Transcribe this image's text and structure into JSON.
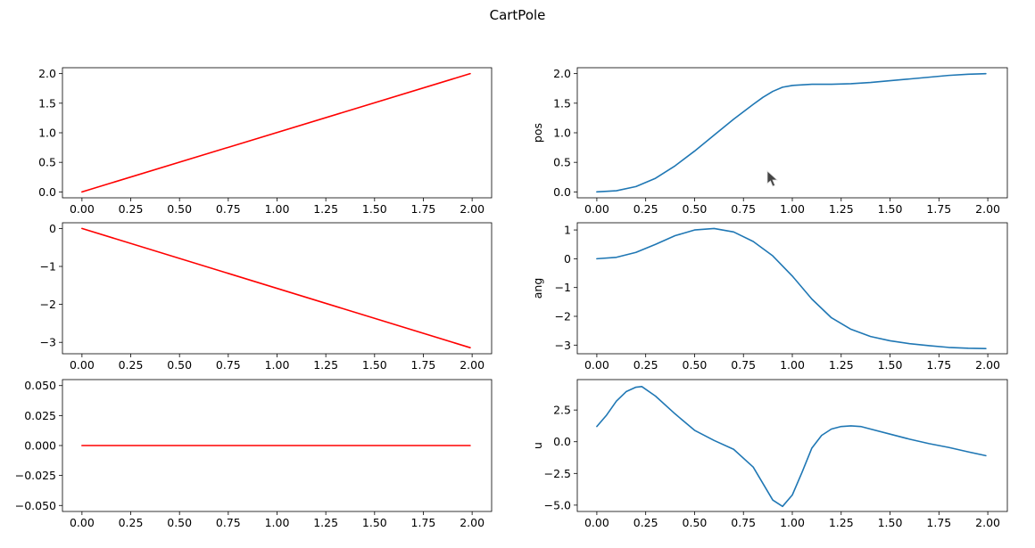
{
  "title": "CartPole",
  "chart_data": [
    {
      "type": "line",
      "position": "top-left",
      "xlabel": "",
      "ylabel": "",
      "xlim": [
        -0.1,
        2.1
      ],
      "ylim": [
        -0.1,
        2.1
      ],
      "xticks": [
        0.0,
        0.25,
        0.5,
        0.75,
        1.0,
        1.25,
        1.5,
        1.75,
        2.0
      ],
      "xtick_labels": [
        "0.00",
        "0.25",
        "0.50",
        "0.75",
        "1.00",
        "1.25",
        "1.50",
        "1.75",
        "2.00"
      ],
      "yticks": [
        0,
        0.5,
        1,
        1.5,
        2
      ],
      "ytick_labels": [
        "0.0",
        "0.5",
        "1.0",
        "1.5",
        "2.0"
      ],
      "series": [
        {
          "color": "#ff0000",
          "x": [
            0,
            1.99
          ],
          "y": [
            0,
            2.0
          ]
        }
      ]
    },
    {
      "type": "line",
      "position": "top-right",
      "xlabel": "",
      "ylabel": "pos",
      "xlim": [
        -0.1,
        2.1
      ],
      "ylim": [
        -0.1,
        2.1
      ],
      "xticks": [
        0.0,
        0.25,
        0.5,
        0.75,
        1.0,
        1.25,
        1.5,
        1.75,
        2.0
      ],
      "xtick_labels": [
        "0.00",
        "0.25",
        "0.50",
        "0.75",
        "1.00",
        "1.25",
        "1.50",
        "1.75",
        "2.00"
      ],
      "yticks": [
        0,
        0.5,
        1,
        1.5,
        2
      ],
      "ytick_labels": [
        "0.0",
        "0.5",
        "1.0",
        "1.5",
        "2.0"
      ],
      "series": [
        {
          "color": "#1f77b4",
          "x": [
            0,
            0.1,
            0.2,
            0.3,
            0.4,
            0.5,
            0.6,
            0.7,
            0.8,
            0.85,
            0.9,
            0.95,
            1.0,
            1.1,
            1.2,
            1.3,
            1.4,
            1.5,
            1.6,
            1.7,
            1.8,
            1.9,
            1.99
          ],
          "y": [
            0,
            0.02,
            0.09,
            0.23,
            0.44,
            0.69,
            0.96,
            1.23,
            1.48,
            1.6,
            1.7,
            1.77,
            1.8,
            1.82,
            1.82,
            1.83,
            1.85,
            1.88,
            1.91,
            1.94,
            1.97,
            1.99,
            2.0
          ]
        }
      ]
    },
    {
      "type": "line",
      "position": "middle-left",
      "xlabel": "",
      "ylabel": "",
      "xlim": [
        -0.1,
        2.1
      ],
      "ylim": [
        -3.3,
        0.15
      ],
      "xticks": [
        0.0,
        0.25,
        0.5,
        0.75,
        1.0,
        1.25,
        1.5,
        1.75,
        2.0
      ],
      "xtick_labels": [
        "0.00",
        "0.25",
        "0.50",
        "0.75",
        "1.00",
        "1.25",
        "1.50",
        "1.75",
        "2.00"
      ],
      "yticks": [
        -3,
        -2,
        -1,
        0
      ],
      "ytick_labels": [
        "−3",
        "−2",
        "−1",
        "0"
      ],
      "series": [
        {
          "color": "#ff0000",
          "x": [
            0,
            1.99
          ],
          "y": [
            0,
            -3.14
          ]
        }
      ]
    },
    {
      "type": "line",
      "position": "middle-right",
      "xlabel": "",
      "ylabel": "ang",
      "xlim": [
        -0.1,
        2.1
      ],
      "ylim": [
        -3.3,
        1.25
      ],
      "xticks": [
        0.0,
        0.25,
        0.5,
        0.75,
        1.0,
        1.25,
        1.5,
        1.75,
        2.0
      ],
      "xtick_labels": [
        "0.00",
        "0.25",
        "0.50",
        "0.75",
        "1.00",
        "1.25",
        "1.50",
        "1.75",
        "2.00"
      ],
      "yticks": [
        -3,
        -2,
        -1,
        0,
        1
      ],
      "ytick_labels": [
        "−3",
        "−2",
        "−1",
        "0",
        "1"
      ],
      "series": [
        {
          "color": "#1f77b4",
          "x": [
            0,
            0.1,
            0.2,
            0.3,
            0.4,
            0.5,
            0.6,
            0.7,
            0.8,
            0.9,
            1.0,
            1.1,
            1.2,
            1.3,
            1.4,
            1.5,
            1.6,
            1.7,
            1.8,
            1.9,
            1.99
          ],
          "y": [
            0,
            0.05,
            0.22,
            0.5,
            0.8,
            1.0,
            1.05,
            0.93,
            0.6,
            0.1,
            -0.6,
            -1.4,
            -2.05,
            -2.45,
            -2.7,
            -2.85,
            -2.95,
            -3.02,
            -3.08,
            -3.11,
            -3.12
          ]
        }
      ]
    },
    {
      "type": "line",
      "position": "bottom-left",
      "xlabel": "",
      "ylabel": "",
      "xlim": [
        -0.1,
        2.1
      ],
      "ylim": [
        -0.055,
        0.055
      ],
      "xticks": [
        0.0,
        0.25,
        0.5,
        0.75,
        1.0,
        1.25,
        1.5,
        1.75,
        2.0
      ],
      "xtick_labels": [
        "0.00",
        "0.25",
        "0.50",
        "0.75",
        "1.00",
        "1.25",
        "1.50",
        "1.75",
        "2.00"
      ],
      "yticks": [
        -0.05,
        -0.025,
        0,
        0.025,
        0.05
      ],
      "ytick_labels": [
        "−0.050",
        "−0.025",
        "0.000",
        "0.025",
        "0.050"
      ],
      "series": [
        {
          "color": "#ff0000",
          "x": [
            0,
            1.99
          ],
          "y": [
            0,
            0
          ]
        }
      ]
    },
    {
      "type": "line",
      "position": "bottom-right",
      "xlabel": "",
      "ylabel": "u",
      "xlim": [
        -0.1,
        2.1
      ],
      "ylim": [
        -5.5,
        4.9
      ],
      "xticks": [
        0.0,
        0.25,
        0.5,
        0.75,
        1.0,
        1.25,
        1.5,
        1.75,
        2.0
      ],
      "xtick_labels": [
        "0.00",
        "0.25",
        "0.50",
        "0.75",
        "1.00",
        "1.25",
        "1.50",
        "1.75",
        "2.00"
      ],
      "yticks": [
        -5,
        -2.5,
        0,
        2.5
      ],
      "ytick_labels": [
        "−5.0",
        "−2.5",
        "0.0",
        "2.5"
      ],
      "series": [
        {
          "color": "#1f77b4",
          "x": [
            0,
            0.05,
            0.1,
            0.15,
            0.2,
            0.23,
            0.3,
            0.4,
            0.5,
            0.6,
            0.7,
            0.8,
            0.85,
            0.9,
            0.95,
            1.0,
            1.05,
            1.1,
            1.15,
            1.2,
            1.25,
            1.3,
            1.35,
            1.4,
            1.5,
            1.6,
            1.7,
            1.8,
            1.9,
            1.99
          ],
          "y": [
            1.2,
            2.1,
            3.2,
            3.95,
            4.3,
            4.35,
            3.6,
            2.2,
            0.9,
            0.1,
            -0.6,
            -2.0,
            -3.3,
            -4.6,
            -5.1,
            -4.2,
            -2.4,
            -0.5,
            0.5,
            1.0,
            1.2,
            1.25,
            1.2,
            1.0,
            0.6,
            0.2,
            -0.15,
            -0.45,
            -0.8,
            -1.1
          ]
        }
      ]
    }
  ]
}
